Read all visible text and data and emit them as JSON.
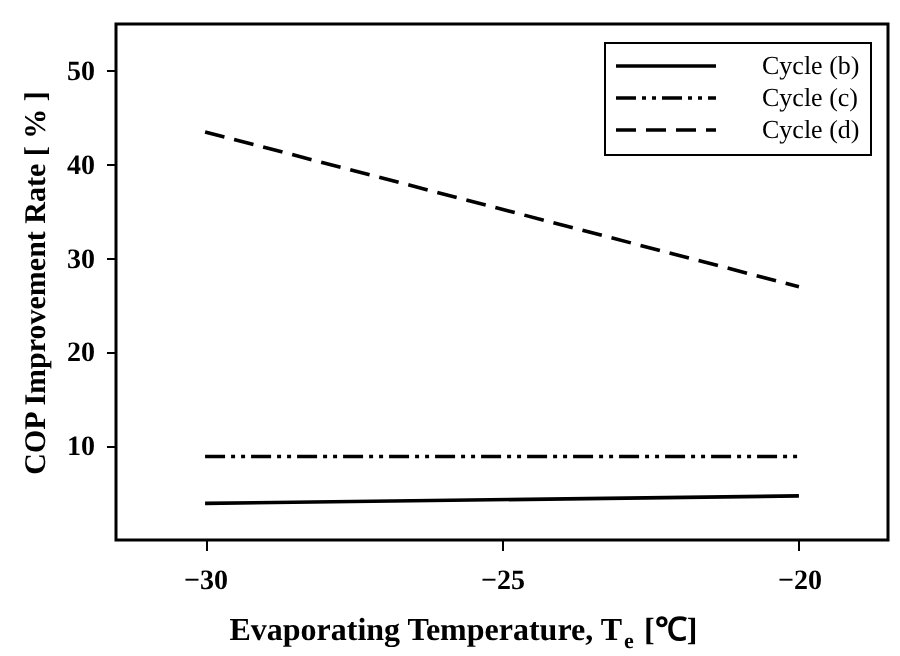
{
  "chart_data": {
    "type": "line",
    "xlabel": "Evaporating Temperature, T$_{e}$ [℃]",
    "ylabel": "COP Improvement Rate [ % ]",
    "x": [
      -30,
      -20
    ],
    "series": [
      {
        "name": "Cycle (b)",
        "color": "#000000",
        "line_style": "solid",
        "values": [
          3.9,
          4.7
        ]
      },
      {
        "name": "Cycle (c)",
        "color": "#000000",
        "line_style": "dashdotdot",
        "values": [
          8.9,
          8.9
        ]
      },
      {
        "name": "Cycle (d)",
        "color": "#000000",
        "line_style": "dashed",
        "values": [
          43.5,
          27
        ]
      }
    ],
    "xlim": [
      -31.5,
      -18.5
    ],
    "xticks": [
      -30,
      -25,
      -20
    ],
    "ylim": [
      0,
      55
    ],
    "yticks": [
      10,
      20,
      30,
      40,
      50
    ],
    "grid": false,
    "legend": "top right",
    "marker": "none"
  }
}
